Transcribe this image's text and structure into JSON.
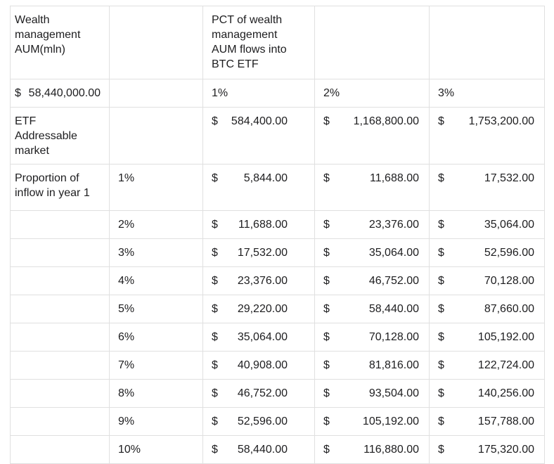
{
  "table": {
    "currency_symbol": "$",
    "style": {
      "border_color": "#e0e0e0",
      "text_color": "#1d1d1f",
      "background": "#ffffff"
    },
    "header_row": {
      "aum_label": "Wealth management AUM(mln)",
      "pct_label": "PCT of wealth management AUM flows into BTC ETF"
    },
    "scenario_row": {
      "aum_amount": "58,440,000.00",
      "pct_1": "1%",
      "pct_2": "2%",
      "pct_3": "3%"
    },
    "market_row": {
      "label": "ETF Addressable market",
      "a1": "584,400.00",
      "a2": "1,168,800.00",
      "a3": "1,753,200.00"
    },
    "inflow_label": "Proportion of inflow in year 1",
    "inflow_rows": [
      {
        "pct": "1%",
        "a1": "5,844.00",
        "a2": "11,688.00",
        "a3": "17,532.00"
      },
      {
        "pct": "2%",
        "a1": "11,688.00",
        "a2": "23,376.00",
        "a3": "35,064.00"
      },
      {
        "pct": "3%",
        "a1": "17,532.00",
        "a2": "35,064.00",
        "a3": "52,596.00"
      },
      {
        "pct": "4%",
        "a1": "23,376.00",
        "a2": "46,752.00",
        "a3": "70,128.00"
      },
      {
        "pct": "5%",
        "a1": "29,220.00",
        "a2": "58,440.00",
        "a3": "87,660.00"
      },
      {
        "pct": "6%",
        "a1": "35,064.00",
        "a2": "70,128.00",
        "a3": "105,192.00"
      },
      {
        "pct": "7%",
        "a1": "40,908.00",
        "a2": "81,816.00",
        "a3": "122,724.00"
      },
      {
        "pct": "8%",
        "a1": "46,752.00",
        "a2": "93,504.00",
        "a3": "140,256.00"
      },
      {
        "pct": "9%",
        "a1": "52,596.00",
        "a2": "105,192.00",
        "a3": "157,788.00"
      },
      {
        "pct": "10%",
        "a1": "58,440.00",
        "a2": "116,880.00",
        "a3": "175,320.00"
      }
    ]
  }
}
